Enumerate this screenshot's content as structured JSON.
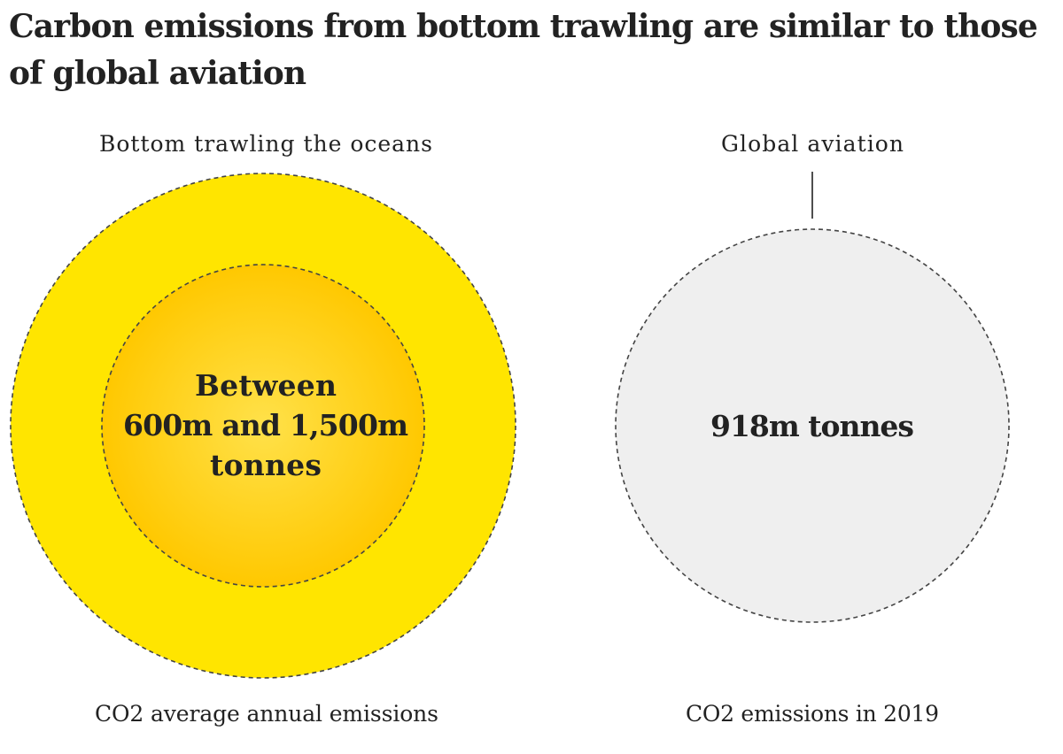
{
  "headline": "Carbon emissions from bottom trawling are similar to those of global aviation",
  "colors": {
    "text": "#222222",
    "trawling_outer_fill": "#ffe500",
    "trawling_inner_fill": "#ffcc00",
    "aviation_fill": "#efefef",
    "dash_stroke": "#444444"
  },
  "chart_data": {
    "type": "proportional-circles",
    "title": "Carbon emissions from bottom trawling are similar to those of global aviation",
    "unit": "tonnes CO2",
    "items": [
      {
        "label": "Bottom trawling the oceans",
        "value_label_lines": [
          "Between",
          "600m and 1,500m",
          "tonnes"
        ],
        "value_min": 600000000,
        "value_max": 1500000000,
        "caption": "CO2 average annual emissions"
      },
      {
        "label": "Global aviation",
        "value_label_lines": [
          "918m tonnes"
        ],
        "value": 918000000,
        "caption": "CO2 emissions in 2019"
      }
    ]
  }
}
